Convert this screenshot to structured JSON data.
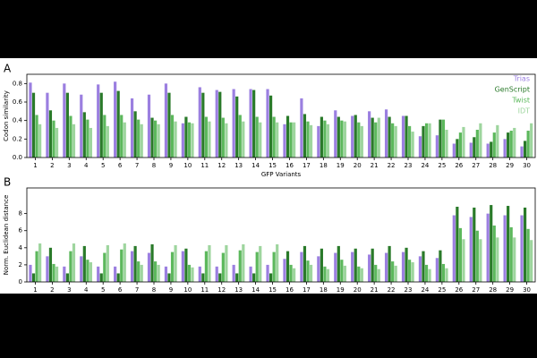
{
  "chart_data": [
    {
      "type": "bar",
      "panel": "A",
      "ylabel": "Codon similarity",
      "xlabel": "GFP Variants",
      "categories": [
        "1",
        "2",
        "3",
        "4",
        "5",
        "6",
        "7",
        "8",
        "9",
        "10",
        "11",
        "12",
        "13",
        "14",
        "15",
        "16",
        "17",
        "18",
        "19",
        "20",
        "21",
        "22",
        "23",
        "24",
        "25",
        "26",
        "27",
        "28",
        "29",
        "30"
      ],
      "ylim": [
        0,
        0.9
      ],
      "yticks": [
        {
          "value": 0,
          "label": "0.0"
        },
        0.2,
        0.4,
        0.6,
        0.8
      ],
      "legend": "upper right",
      "series": [
        {
          "name": "Trias",
          "color": "#9b7fe0",
          "values": [
            0.81,
            0.7,
            0.8,
            0.68,
            0.79,
            0.82,
            0.64,
            0.68,
            0.8,
            0.37,
            0.76,
            0.73,
            0.74,
            0.74,
            0.74,
            0.36,
            0.64,
            0.34,
            0.51,
            0.45,
            0.5,
            0.52,
            0.45,
            0.23,
            0.24,
            0.15,
            0.16,
            0.15,
            0.2,
            0.12
          ]
        },
        {
          "name": "GenScript",
          "color": "#2a7a2a",
          "values": [
            0.7,
            0.51,
            0.7,
            0.49,
            0.7,
            0.72,
            0.5,
            0.43,
            0.7,
            0.44,
            0.7,
            0.71,
            0.66,
            0.73,
            0.67,
            0.45,
            0.47,
            0.44,
            0.44,
            0.46,
            0.43,
            0.44,
            0.45,
            0.34,
            0.41,
            0.2,
            0.22,
            0.17,
            0.27,
            0.18
          ]
        },
        {
          "name": "Twist",
          "color": "#5cb85c",
          "values": [
            0.46,
            0.4,
            0.45,
            0.41,
            0.46,
            0.46,
            0.41,
            0.4,
            0.46,
            0.38,
            0.44,
            0.43,
            0.46,
            0.44,
            0.44,
            0.38,
            0.39,
            0.4,
            0.4,
            0.38,
            0.38,
            0.37,
            0.34,
            0.37,
            0.41,
            0.27,
            0.3,
            0.27,
            0.29,
            0.29
          ]
        },
        {
          "name": "IDT",
          "color": "#9ed59e",
          "values": [
            0.36,
            0.32,
            0.36,
            0.32,
            0.34,
            0.38,
            0.36,
            0.36,
            0.39,
            0.37,
            0.39,
            0.37,
            0.39,
            0.38,
            0.38,
            0.38,
            0.35,
            0.36,
            0.39,
            0.34,
            0.43,
            0.34,
            0.28,
            0.37,
            0.3,
            0.33,
            0.37,
            0.35,
            0.32,
            0.37
          ]
        }
      ]
    },
    {
      "type": "bar",
      "panel": "B",
      "ylabel": "Norm. Euclidean distance",
      "xlabel": "GFP Variants",
      "categories": [
        "1",
        "2",
        "3",
        "4",
        "5",
        "6",
        "7",
        "8",
        "9",
        "10",
        "11",
        "12",
        "13",
        "14",
        "15",
        "16",
        "17",
        "18",
        "19",
        "20",
        "21",
        "22",
        "23",
        "24",
        "25",
        "26",
        "27",
        "28",
        "29",
        "30"
      ],
      "ylim": [
        0,
        11
      ],
      "yticks": [
        0,
        2,
        4,
        6,
        8
      ],
      "series": [
        {
          "color": "#9b7fe0",
          "values": [
            2.0,
            3.0,
            1.8,
            3.0,
            1.8,
            1.8,
            3.6,
            3.4,
            1.8,
            3.6,
            1.8,
            1.8,
            2.0,
            1.8,
            2.0,
            2.7,
            3.5,
            3.0,
            3.4,
            3.5,
            3.2,
            3.4,
            3.5,
            3.0,
            2.8,
            7.8,
            7.6,
            8.0,
            7.8,
            7.8
          ]
        },
        {
          "color": "#2a7a2a",
          "values": [
            1.0,
            4.0,
            1.0,
            4.2,
            1.0,
            1.0,
            4.2,
            4.4,
            1.0,
            3.9,
            1.0,
            1.0,
            1.0,
            1.0,
            1.0,
            3.6,
            4.2,
            3.9,
            4.2,
            3.9,
            3.9,
            4.2,
            4.0,
            3.6,
            3.7,
            8.8,
            8.7,
            9.0,
            8.9,
            8.7
          ]
        },
        {
          "color": "#5cb85c",
          "values": [
            3.6,
            2.1,
            3.6,
            2.6,
            3.4,
            3.8,
            2.4,
            2.4,
            3.5,
            2.0,
            3.6,
            3.4,
            3.7,
            3.5,
            3.5,
            2.0,
            2.5,
            1.8,
            2.6,
            1.8,
            2.0,
            2.4,
            2.6,
            2.0,
            2.1,
            6.3,
            6.0,
            6.6,
            6.4,
            6.2
          ]
        },
        {
          "color": "#9ed59e",
          "values": [
            4.5,
            1.8,
            4.5,
            2.3,
            4.3,
            4.5,
            2.0,
            2.0,
            4.3,
            1.7,
            4.3,
            4.3,
            4.4,
            4.2,
            4.4,
            1.6,
            2.0,
            1.5,
            1.9,
            1.6,
            1.5,
            1.9,
            2.3,
            1.5,
            1.6,
            5.0,
            5.0,
            5.2,
            5.2,
            4.9
          ]
        }
      ]
    }
  ]
}
